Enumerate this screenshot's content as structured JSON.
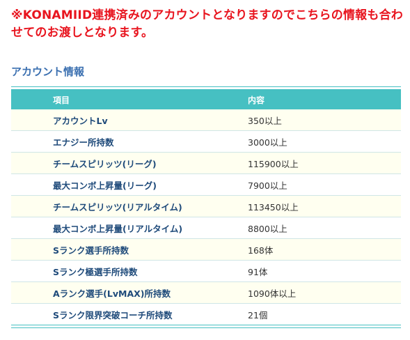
{
  "notice": {
    "text": "※KONAMIID連携済みのアカウントとなりますのでこちらの情報も合わせてのお渡しとなります。"
  },
  "section": {
    "title": "アカウント情報"
  },
  "table": {
    "headers": {
      "item": "項目",
      "content": "内容"
    },
    "rows": [
      {
        "item": "アカウントLv",
        "value": "350以上"
      },
      {
        "item": "エナジー所持数",
        "value": "3000以上"
      },
      {
        "item": "チームスピリッツ(リーグ)",
        "value": "115900以上"
      },
      {
        "item": "最大コンボ上昇量(リーグ)",
        "value": "7900以上"
      },
      {
        "item": "チームスピリッツ(リアルタイム)",
        "value": "113450以上"
      },
      {
        "item": "最大コンボ上昇量(リアルタイム)",
        "value": "8800以上"
      },
      {
        "item": "Sランク選手所持数",
        "value": "168体"
      },
      {
        "item": "Sランク極選手所持数",
        "value": "91体"
      },
      {
        "item": "Aランク選手(LvMAX)所持数",
        "value": "1090体以上"
      },
      {
        "item": "Sランク限界突破コーチ所持数",
        "value": "21個"
      }
    ]
  },
  "colors": {
    "notice_red": "#e8141e",
    "section_blue": "#3a6fb0",
    "header_teal": "#46c0c2",
    "row_cream": "#fffff0",
    "label_navy": "#1e4a7a"
  }
}
